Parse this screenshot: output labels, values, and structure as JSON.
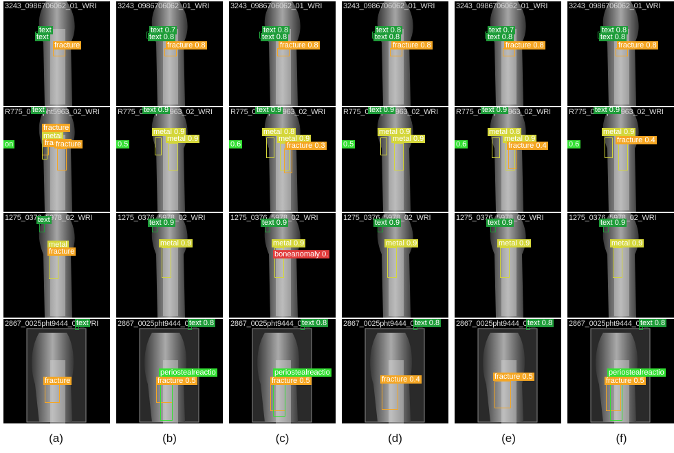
{
  "captions": [
    "(a)",
    "(b)",
    "(c)",
    "(d)",
    "(e)",
    "(f)"
  ],
  "rows": [
    {
      "filename": "3243_0986706062_01_WRI",
      "panels": [
        {
          "labels": [
            {
              "text": "text",
              "cls": "text"
            },
            {
              "text": "text",
              "cls": "text"
            },
            {
              "text": "fracture",
              "cls": "fracture"
            }
          ]
        },
        {
          "labels": [
            {
              "text": "text 0.7",
              "cls": "text"
            },
            {
              "text": "text 0.8",
              "cls": "text"
            },
            {
              "text": "fracture 0.8",
              "cls": "fracture"
            }
          ]
        },
        {
          "labels": [
            {
              "text": "text 0.8",
              "cls": "text"
            },
            {
              "text": "text 0.8",
              "cls": "text"
            },
            {
              "text": "fracture 0.8",
              "cls": "fracture"
            }
          ]
        },
        {
          "labels": [
            {
              "text": "text 0.8",
              "cls": "text"
            },
            {
              "text": "text 0.8",
              "cls": "text"
            },
            {
              "text": "fracture 0.8",
              "cls": "fracture"
            }
          ]
        },
        {
          "labels": [
            {
              "text": "text 0.7",
              "cls": "text"
            },
            {
              "text": "text 0.8",
              "cls": "text"
            },
            {
              "text": "fracture 0.8",
              "cls": "fracture"
            }
          ]
        },
        {
          "labels": [
            {
              "text": "text 0.8",
              "cls": "text"
            },
            {
              "text": "text 0.8",
              "cls": "text"
            },
            {
              "text": "fracture 0.8",
              "cls": "fracture"
            }
          ]
        }
      ]
    },
    {
      "filename": "R775_0097pht5963_02_WRI",
      "panels": [
        {
          "labels": [
            {
              "text": "text",
              "cls": "text"
            },
            {
              "text": "on",
              "cls": "on"
            },
            {
              "text": "fracture",
              "cls": "fracture"
            },
            {
              "text": "metal",
              "cls": "metal"
            },
            {
              "text": "fracture",
              "cls": "fracture"
            },
            {
              "text": "fracture",
              "cls": "fracture"
            }
          ]
        },
        {
          "labels": [
            {
              "text": "text 0.9",
              "cls": "text"
            },
            {
              "text": "0.5",
              "cls": "on"
            },
            {
              "text": "metal 0.9",
              "cls": "metal"
            },
            {
              "text": "metal 0.9",
              "cls": "metal"
            }
          ]
        },
        {
          "labels": [
            {
              "text": "text 0.9",
              "cls": "text"
            },
            {
              "text": "0.6",
              "cls": "on"
            },
            {
              "text": "metal 0.8",
              "cls": "metal"
            },
            {
              "text": "metal 0.9",
              "cls": "metal"
            },
            {
              "text": "fracture 0.3",
              "cls": "fracture"
            }
          ]
        },
        {
          "labels": [
            {
              "text": "text 0.9",
              "cls": "text"
            },
            {
              "text": "0.5",
              "cls": "on"
            },
            {
              "text": "metal 0.9",
              "cls": "metal"
            },
            {
              "text": "metal 0.9",
              "cls": "metal"
            }
          ]
        },
        {
          "labels": [
            {
              "text": "text 0.9",
              "cls": "text"
            },
            {
              "text": "0.6",
              "cls": "on"
            },
            {
              "text": "metal 0.8",
              "cls": "metal"
            },
            {
              "text": "metal 0.9",
              "cls": "metal"
            },
            {
              "text": "fracture 0.4",
              "cls": "fracture"
            }
          ]
        },
        {
          "labels": [
            {
              "text": "text 0.9",
              "cls": "text"
            },
            {
              "text": "0.6",
              "cls": "on"
            },
            {
              "text": "metal 0.9",
              "cls": "metal"
            },
            {
              "text": "fracture 0.4",
              "cls": "fracture"
            }
          ]
        }
      ]
    },
    {
      "filename": "1275_0376_5978_02_WRI",
      "panels": [
        {
          "labels": [
            {
              "text": "text",
              "cls": "text"
            },
            {
              "text": "metal",
              "cls": "metal"
            },
            {
              "text": "fracture",
              "cls": "fracture"
            }
          ]
        },
        {
          "labels": [
            {
              "text": "text 0.9",
              "cls": "text"
            },
            {
              "text": "metal 0.9",
              "cls": "metal"
            }
          ]
        },
        {
          "labels": [
            {
              "text": "text 0.9",
              "cls": "text"
            },
            {
              "text": "metal 0.9",
              "cls": "metal"
            },
            {
              "text": "boneanomaly 0.",
              "cls": "bone"
            }
          ]
        },
        {
          "labels": [
            {
              "text": "text 0.9",
              "cls": "text"
            },
            {
              "text": "metal 0.9",
              "cls": "metal"
            }
          ]
        },
        {
          "labels": [
            {
              "text": "text 0.9",
              "cls": "text"
            },
            {
              "text": "metal 0.9",
              "cls": "metal"
            }
          ]
        },
        {
          "labels": [
            {
              "text": "text 0.9",
              "cls": "text"
            },
            {
              "text": "metal 0.9",
              "cls": "metal"
            }
          ]
        }
      ]
    },
    {
      "filename": "2867_0025pht9444_01_WRI",
      "panels": [
        {
          "labels": [
            {
              "text": "text",
              "cls": "text"
            },
            {
              "text": "fracture",
              "cls": "fracture"
            }
          ]
        },
        {
          "labels": [
            {
              "text": "text 0.8",
              "cls": "text"
            },
            {
              "text": "periostealreactio",
              "cls": "on"
            },
            {
              "text": "fracture 0.5",
              "cls": "fracture"
            }
          ]
        },
        {
          "labels": [
            {
              "text": "text 0.8",
              "cls": "text"
            },
            {
              "text": "periostealreactio",
              "cls": "on"
            },
            {
              "text": "fracture 0.5",
              "cls": "fracture"
            }
          ]
        },
        {
          "labels": [
            {
              "text": "text 0.8",
              "cls": "text"
            },
            {
              "text": "fracture 0.4",
              "cls": "fracture"
            }
          ]
        },
        {
          "labels": [
            {
              "text": "text 0.8",
              "cls": "text"
            },
            {
              "text": "fracture 0.5",
              "cls": "fracture"
            }
          ]
        },
        {
          "labels": [
            {
              "text": "text 0.8",
              "cls": "text"
            },
            {
              "text": "periostealreactio",
              "cls": "on"
            },
            {
              "text": "fracture 0.5",
              "cls": "fracture"
            }
          ]
        }
      ]
    }
  ],
  "colors": {
    "text": "#1f9d3a",
    "fracture": "#f5a623",
    "metal": "#d4d63a",
    "bone": "#e23b3b",
    "on": "#33e033"
  }
}
